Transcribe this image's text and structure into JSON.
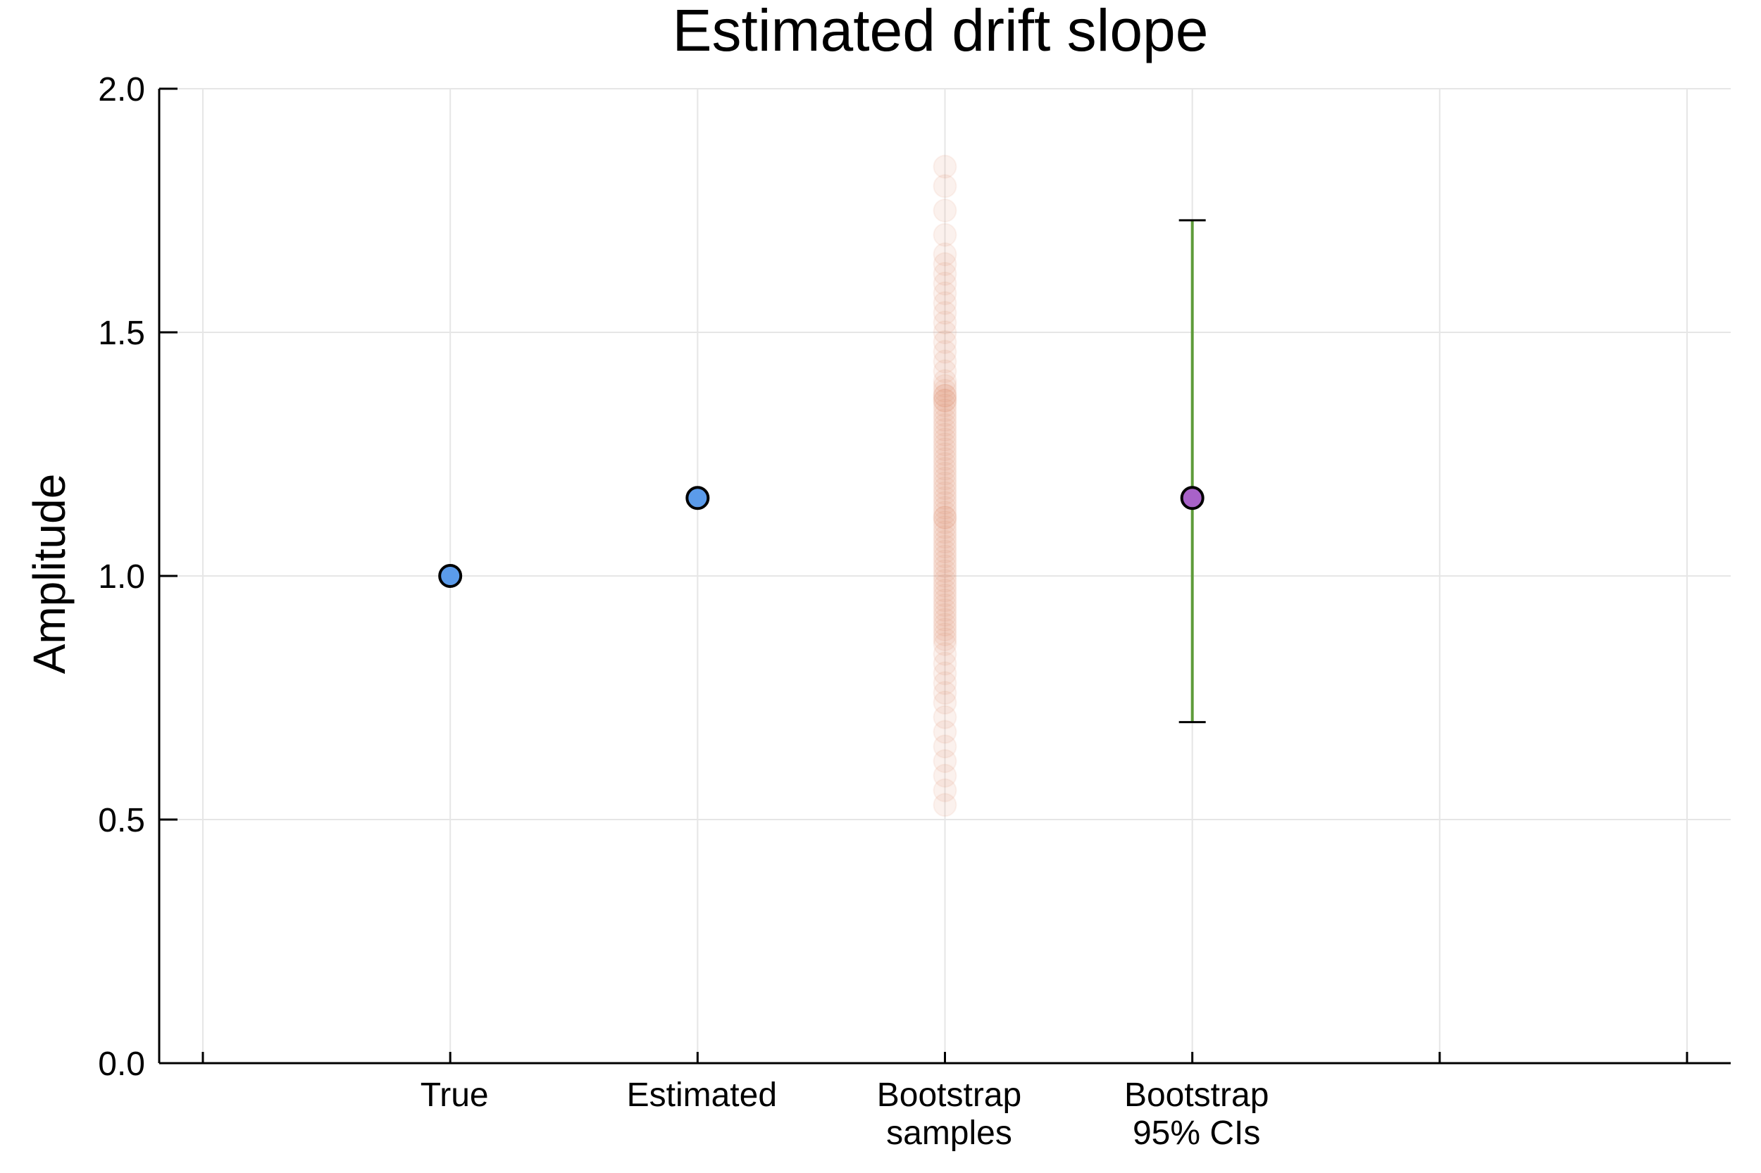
{
  "chart_data": {
    "type": "scatter",
    "title": "Estimated drift slope",
    "xlabel": "",
    "ylabel": "Amplitude",
    "ylim": [
      0.0,
      2.0
    ],
    "yticks": [
      "0.0",
      "0.5",
      "1.0",
      "1.5",
      "2.0"
    ],
    "ytick_values": [
      0.0,
      0.5,
      1.0,
      1.5,
      2.0
    ],
    "xlim": [
      0,
      6
    ],
    "categories": [
      {
        "x": 1,
        "lines": [
          "True"
        ]
      },
      {
        "x": 2,
        "lines": [
          "Estimated"
        ]
      },
      {
        "x": 3,
        "lines": [
          "Bootstrap",
          "samples"
        ]
      },
      {
        "x": 4,
        "lines": [
          "Bootstrap",
          "95% CIs"
        ]
      }
    ],
    "true_point": {
      "x": 1,
      "y": 1.0,
      "color": "#5b9bea"
    },
    "estimated_point": {
      "x": 2,
      "y": 1.16,
      "color": "#5b9bea"
    },
    "bootstrap_samples": {
      "x": 3,
      "color": "#e0896a",
      "opacity": 0.12,
      "values": [
        0.53,
        0.56,
        0.59,
        0.62,
        0.65,
        0.68,
        0.71,
        0.74,
        0.76,
        0.78,
        0.8,
        0.82,
        0.84,
        0.86,
        0.87,
        0.88,
        0.89,
        0.9,
        0.91,
        0.92,
        0.93,
        0.94,
        0.95,
        0.96,
        0.97,
        0.98,
        0.99,
        1.0,
        1.01,
        1.02,
        1.03,
        1.04,
        1.05,
        1.06,
        1.07,
        1.08,
        1.09,
        1.1,
        1.11,
        1.12,
        1.12,
        1.13,
        1.14,
        1.15,
        1.16,
        1.17,
        1.18,
        1.19,
        1.2,
        1.21,
        1.22,
        1.23,
        1.24,
        1.25,
        1.26,
        1.27,
        1.28,
        1.29,
        1.3,
        1.31,
        1.32,
        1.33,
        1.34,
        1.35,
        1.36,
        1.36,
        1.37,
        1.37,
        1.38,
        1.39,
        1.4,
        1.42,
        1.44,
        1.46,
        1.48,
        1.5,
        1.52,
        1.54,
        1.56,
        1.58,
        1.6,
        1.62,
        1.64,
        1.66,
        1.7,
        1.75,
        1.8,
        1.84
      ]
    },
    "ci_point": {
      "x": 4,
      "y": 1.16,
      "lower": 0.7,
      "upper": 1.73,
      "color": "#a862c8",
      "bar_color": "#5e9b3a"
    },
    "grid": true,
    "legend": "none"
  }
}
